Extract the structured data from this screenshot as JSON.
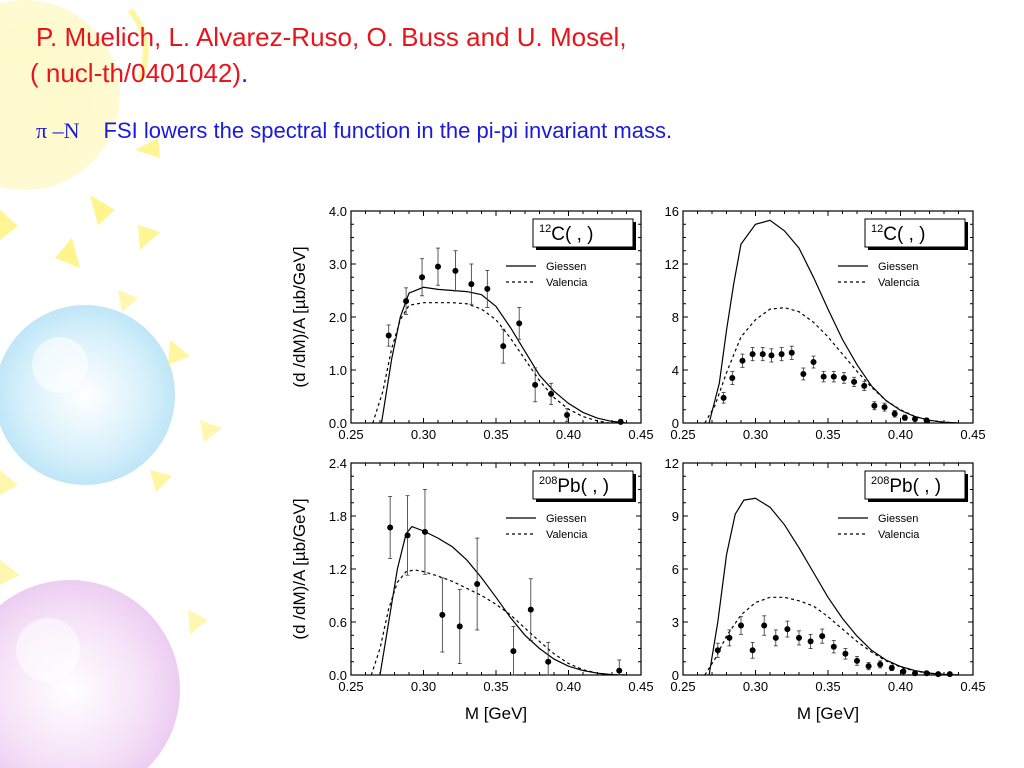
{
  "slide": {
    "reference_line1": "P. Muelich, L. Alvarez-Ruso, O. Buss and U. Mosel,",
    "reference_line2": "( nucl-th/0401042)",
    "reference_period": ".",
    "headline_symbol": "π –N",
    "headline_text": "FSI lowers the spectral function in the pi-pi invariant mass."
  },
  "colors": {
    "reference": "#e8141c",
    "headline": "#1a1adc",
    "ink": "#000000"
  },
  "chart_data": [
    {
      "type": "line",
      "panel": "top-left",
      "label_sup": "12",
      "label_text": "C( ,    )",
      "ylabel": "(d  /dM)/A [µb/GeV]",
      "xlabel": "",
      "xlim": [
        0.25,
        0.45
      ],
      "ylim": [
        0,
        4
      ],
      "xticks": [
        "0.25",
        "0.30",
        "0.35",
        "0.40",
        "0.45"
      ],
      "yticks": [
        "0.0",
        "1.0",
        "2.0",
        "3.0",
        "4.0"
      ],
      "legend": [
        "Giessen",
        "Valencia"
      ],
      "series": [
        {
          "name": "Giessen",
          "style": "solid",
          "x": [
            0.271,
            0.278,
            0.284,
            0.29,
            0.3,
            0.31,
            0.32,
            0.33,
            0.34,
            0.35,
            0.36,
            0.37,
            0.38,
            0.39,
            0.4,
            0.41,
            0.42,
            0.43,
            0.44
          ],
          "y": [
            0,
            1.2,
            2.0,
            2.45,
            2.56,
            2.52,
            2.5,
            2.48,
            2.42,
            2.2,
            1.8,
            1.35,
            0.9,
            0.6,
            0.37,
            0.2,
            0.09,
            0.03,
            0
          ]
        },
        {
          "name": "Valencia",
          "style": "dotted",
          "x": [
            0.265,
            0.272,
            0.278,
            0.284,
            0.29,
            0.3,
            0.31,
            0.32,
            0.33,
            0.34,
            0.35,
            0.36,
            0.37,
            0.38,
            0.39,
            0.4,
            0.41,
            0.42,
            0.428
          ],
          "y": [
            0,
            0.6,
            1.4,
            1.95,
            2.22,
            2.27,
            2.27,
            2.27,
            2.25,
            2.15,
            1.95,
            1.6,
            1.2,
            0.8,
            0.48,
            0.26,
            0.12,
            0.04,
            0
          ]
        }
      ],
      "points": {
        "x": [
          0.276,
          0.288,
          0.299,
          0.31,
          0.322,
          0.333,
          0.344,
          0.355,
          0.366,
          0.377,
          0.388,
          0.399,
          0.436
        ],
        "y": [
          1.65,
          2.3,
          2.75,
          2.95,
          2.87,
          2.62,
          2.53,
          1.45,
          1.88,
          0.72,
          0.55,
          0.15,
          0.02
        ],
        "err": [
          0.2,
          0.25,
          0.35,
          0.35,
          0.38,
          0.38,
          0.35,
          0.32,
          0.3,
          0.32,
          0.2,
          0.12,
          0.05
        ]
      }
    },
    {
      "type": "line",
      "panel": "top-right",
      "label_sup": "12",
      "label_text": "C( ,    )",
      "ylabel": "",
      "xlabel": "",
      "xlim": [
        0.25,
        0.45
      ],
      "ylim": [
        0,
        16
      ],
      "xticks": [
        "0.25",
        "0.30",
        "0.35",
        "0.40",
        "0.45"
      ],
      "yticks": [
        "0",
        "4",
        "8",
        "12",
        "16"
      ],
      "legend": [
        "Giessen",
        "Valencia"
      ],
      "series": [
        {
          "name": "Giessen",
          "style": "solid",
          "x": [
            0.268,
            0.275,
            0.28,
            0.285,
            0.29,
            0.3,
            0.31,
            0.32,
            0.33,
            0.34,
            0.35,
            0.36,
            0.37,
            0.38,
            0.39,
            0.4,
            0.41,
            0.42,
            0.43,
            0.44
          ],
          "y": [
            0,
            3,
            7,
            10.5,
            13.5,
            15,
            15.3,
            14.5,
            13.2,
            11,
            8.6,
            6.3,
            4.4,
            2.8,
            1.7,
            0.95,
            0.48,
            0.2,
            0.06,
            0
          ]
        },
        {
          "name": "Valencia",
          "style": "dotted",
          "x": [
            0.265,
            0.272,
            0.28,
            0.29,
            0.3,
            0.31,
            0.32,
            0.33,
            0.34,
            0.35,
            0.36,
            0.37,
            0.38,
            0.39,
            0.4,
            0.41,
            0.42,
            0.43,
            0.44
          ],
          "y": [
            0,
            1.3,
            3.8,
            6.5,
            7.8,
            8.6,
            8.7,
            8.4,
            7.6,
            6.5,
            5.2,
            3.9,
            2.7,
            1.7,
            1.0,
            0.5,
            0.2,
            0.06,
            0
          ]
        }
      ],
      "points": {
        "x": [
          0.278,
          0.284,
          0.291,
          0.298,
          0.305,
          0.311,
          0.318,
          0.325,
          0.333,
          0.34,
          0.347,
          0.354,
          0.361,
          0.368,
          0.375,
          0.382,
          0.389,
          0.396,
          0.403,
          0.41,
          0.418
        ],
        "y": [
          1.9,
          3.4,
          4.7,
          5.2,
          5.2,
          5.1,
          5.2,
          5.3,
          3.7,
          4.6,
          3.5,
          3.5,
          3.4,
          3.1,
          2.8,
          1.3,
          1.2,
          0.7,
          0.4,
          0.3,
          0.2
        ],
        "err": [
          0.4,
          0.5,
          0.5,
          0.5,
          0.5,
          0.5,
          0.5,
          0.5,
          0.45,
          0.45,
          0.4,
          0.4,
          0.4,
          0.35,
          0.35,
          0.3,
          0.3,
          0.25,
          0.2,
          0.15,
          0.15
        ]
      }
    },
    {
      "type": "line",
      "panel": "bottom-left",
      "label_sup": "208",
      "label_text": "Pb( ,    )",
      "ylabel": "(d  /dM)/A [µb/GeV]",
      "xlabel": "M   [GeV]",
      "xlim": [
        0.25,
        0.45
      ],
      "ylim": [
        0,
        2.4
      ],
      "xticks": [
        "0.25",
        "0.30",
        "0.35",
        "0.40",
        "0.45"
      ],
      "yticks": [
        "0.0",
        "0.6",
        "1.2",
        "1.8",
        "2.4"
      ],
      "legend": [
        "Giessen",
        "Valencia"
      ],
      "series": [
        {
          "name": "Giessen",
          "style": "solid",
          "x": [
            0.27,
            0.276,
            0.282,
            0.288,
            0.292,
            0.3,
            0.31,
            0.32,
            0.33,
            0.34,
            0.35,
            0.36,
            0.37,
            0.38,
            0.39,
            0.4,
            0.41,
            0.42,
            0.43,
            0.44
          ],
          "y": [
            0,
            0.6,
            1.2,
            1.6,
            1.68,
            1.63,
            1.55,
            1.45,
            1.3,
            1.1,
            0.88,
            0.65,
            0.45,
            0.3,
            0.18,
            0.1,
            0.05,
            0.02,
            0.005,
            0
          ]
        },
        {
          "name": "Valencia",
          "style": "dotted",
          "x": [
            0.264,
            0.27,
            0.276,
            0.282,
            0.288,
            0.294,
            0.3,
            0.31,
            0.32,
            0.33,
            0.34,
            0.35,
            0.36,
            0.37,
            0.38,
            0.39,
            0.4,
            0.41,
            0.42,
            0.43
          ],
          "y": [
            0,
            0.3,
            0.75,
            1.05,
            1.17,
            1.19,
            1.17,
            1.12,
            1.06,
            0.98,
            0.9,
            0.8,
            0.68,
            0.53,
            0.38,
            0.24,
            0.13,
            0.06,
            0.02,
            0
          ]
        }
      ],
      "points": {
        "x": [
          0.277,
          0.289,
          0.301,
          0.313,
          0.325,
          0.337,
          0.362,
          0.374,
          0.386,
          0.435
        ],
        "y": [
          1.67,
          1.58,
          1.62,
          0.68,
          0.55,
          1.03,
          0.27,
          0.74,
          0.15,
          0.05
        ],
        "err": [
          0.35,
          0.45,
          0.48,
          0.42,
          0.42,
          0.52,
          0.28,
          0.35,
          0.22,
          0.12
        ]
      }
    },
    {
      "type": "line",
      "panel": "bottom-right",
      "label_sup": "208",
      "label_text": "Pb( ,    )",
      "ylabel": "",
      "xlabel": "M   [GeV]",
      "xlim": [
        0.25,
        0.45
      ],
      "ylim": [
        0,
        12
      ],
      "xticks": [
        "0.25",
        "0.30",
        "0.35",
        "0.40",
        "0.45"
      ],
      "yticks": [
        "0",
        "3",
        "6",
        "9",
        "12"
      ],
      "legend": [
        "Giessen",
        "Valencia"
      ],
      "series": [
        {
          "name": "Giessen",
          "style": "solid",
          "x": [
            0.268,
            0.274,
            0.28,
            0.286,
            0.292,
            0.3,
            0.31,
            0.32,
            0.33,
            0.34,
            0.35,
            0.36,
            0.37,
            0.38,
            0.39,
            0.4,
            0.41,
            0.42,
            0.43,
            0.44
          ],
          "y": [
            0,
            3,
            6.8,
            9.1,
            9.9,
            10,
            9.5,
            8.5,
            7.2,
            5.8,
            4.4,
            3.2,
            2.2,
            1.4,
            0.85,
            0.48,
            0.25,
            0.11,
            0.04,
            0
          ]
        },
        {
          "name": "Valencia",
          "style": "dotted",
          "x": [
            0.265,
            0.272,
            0.28,
            0.29,
            0.3,
            0.31,
            0.32,
            0.33,
            0.34,
            0.35,
            0.36,
            0.37,
            0.38,
            0.39,
            0.4,
            0.41,
            0.42,
            0.43,
            0.44
          ],
          "y": [
            0,
            0.9,
            2.2,
            3.4,
            4.1,
            4.4,
            4.4,
            4.2,
            3.9,
            3.3,
            2.6,
            1.9,
            1.3,
            0.8,
            0.45,
            0.22,
            0.09,
            0.03,
            0
          ]
        }
      ],
      "points": {
        "x": [
          0.274,
          0.282,
          0.29,
          0.298,
          0.306,
          0.314,
          0.322,
          0.33,
          0.338,
          0.346,
          0.354,
          0.362,
          0.37,
          0.378,
          0.386,
          0.394,
          0.402,
          0.41,
          0.418,
          0.426,
          0.434
        ],
        "y": [
          1.4,
          2.1,
          2.8,
          1.4,
          2.8,
          2.1,
          2.6,
          2.1,
          1.9,
          2.2,
          1.6,
          1.2,
          0.8,
          0.5,
          0.6,
          0.4,
          0.2,
          0.1,
          0.1,
          0.05,
          0.05
        ],
        "err": [
          0.4,
          0.45,
          0.5,
          0.45,
          0.55,
          0.45,
          0.45,
          0.4,
          0.4,
          0.4,
          0.35,
          0.3,
          0.25,
          0.2,
          0.2,
          0.15,
          0.12,
          0.1,
          0.08,
          0.05,
          0.05
        ]
      }
    }
  ]
}
